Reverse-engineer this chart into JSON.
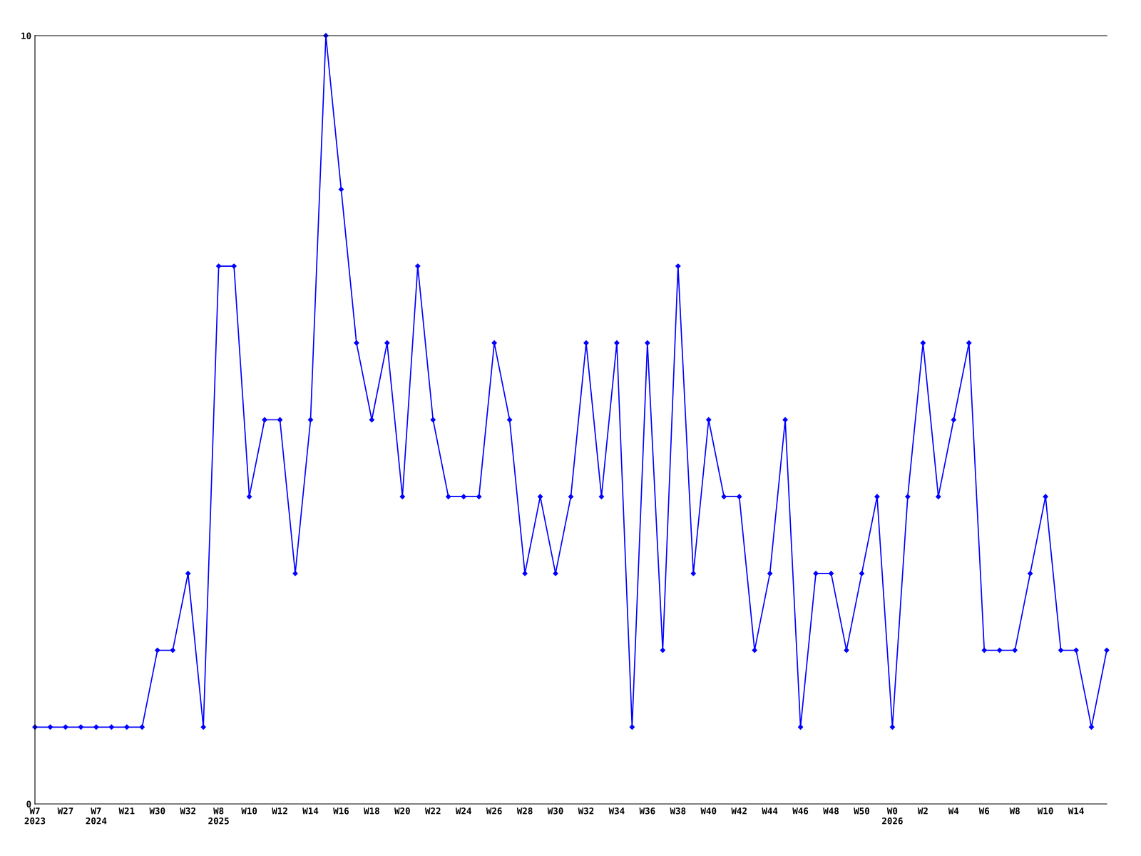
{
  "chart_data": {
    "type": "line",
    "categories": [
      "W7\n2023",
      null,
      "W27",
      null,
      "W7\n2024",
      null,
      "W21",
      null,
      "W30",
      null,
      "W32",
      null,
      "W8\n2025",
      null,
      "W10",
      null,
      "W12",
      null,
      "W14",
      null,
      "W16",
      null,
      "W18",
      null,
      "W20",
      null,
      "W22",
      null,
      "W24",
      null,
      "W26",
      null,
      "W28",
      null,
      "W30",
      null,
      "W32",
      null,
      "W34",
      null,
      "W36",
      null,
      "W38",
      null,
      "W40",
      null,
      "W42",
      null,
      "W44",
      null,
      "W46",
      null,
      "W48",
      null,
      "W50",
      null,
      "W0\n2026",
      null,
      "W2",
      null,
      "W4",
      null,
      "W6",
      null,
      "W8",
      null,
      "W10",
      null,
      "W14",
      null,
      null
    ],
    "series": [
      {
        "color": "#0000ff",
        "values": [
          1,
          1,
          1,
          1,
          1,
          1,
          1,
          1,
          2,
          2,
          3,
          1,
          7,
          7,
          4,
          5,
          5,
          3,
          5,
          10,
          8,
          6,
          5,
          6,
          4,
          7,
          5,
          4,
          4,
          4,
          6,
          5,
          3,
          4,
          3,
          4,
          6,
          4,
          6,
          1,
          6,
          2,
          7,
          3,
          5,
          4,
          4,
          2,
          3,
          5,
          1,
          3,
          3,
          2,
          3,
          4,
          1,
          4,
          6,
          4,
          5,
          6,
          2,
          2,
          2,
          3,
          4,
          2,
          2,
          1,
          2
        ]
      }
    ],
    "ylim": [
      0,
      10
    ],
    "yticks": [
      0,
      10
    ],
    "grid": false,
    "legend": false,
    "marker": "diamond",
    "line_style": "solid"
  }
}
